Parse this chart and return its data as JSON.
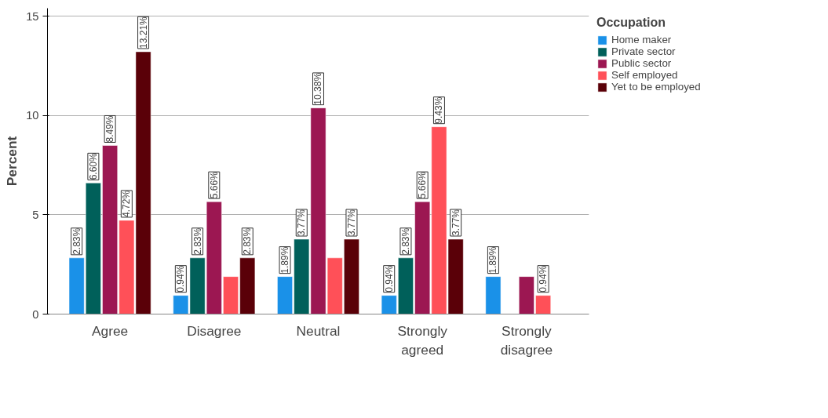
{
  "chart_data": {
    "type": "bar",
    "ylabel": "Percent",
    "legend_title": "Occupation",
    "legend": "right",
    "grid": "y",
    "categories": [
      "Agree",
      "Disagree",
      "Neutral",
      "Strongly\nagreed",
      "Strongly\ndisagree"
    ],
    "ylim": [
      0,
      15.4
    ],
    "yticks": [
      0,
      5,
      10,
      15
    ],
    "series": [
      {
        "name": "Home maker",
        "color": "#1a91e8",
        "values": [
          2.83,
          0.94,
          1.89,
          0.94,
          1.89
        ],
        "value_labels": [
          "2.83%",
          "0.94%",
          "1.89%",
          "0.94%",
          "1.89%"
        ]
      },
      {
        "name": "Private sector",
        "color": "#00605a",
        "values": [
          6.6,
          2.83,
          3.77,
          2.83,
          null
        ],
        "value_labels": [
          "6.60%",
          "2.83%",
          "3.77%",
          "2.83%",
          null
        ]
      },
      {
        "name": "Public sector",
        "color": "#9c1752",
        "values": [
          8.49,
          5.66,
          10.38,
          5.66,
          1.89
        ],
        "value_labels": [
          "8.49%",
          "5.66%",
          "10.38%",
          "5.66%",
          null
        ]
      },
      {
        "name": "Self employed",
        "color": "#ff5058",
        "values": [
          4.72,
          1.89,
          2.83,
          9.43,
          0.94
        ],
        "value_labels": [
          "4.72%",
          null,
          null,
          "9.43%",
          "0.94%"
        ]
      },
      {
        "name": "Yet to be employed",
        "color": "#5a0008",
        "values": [
          13.21,
          2.83,
          3.77,
          3.77,
          null
        ],
        "value_labels": [
          "13.21%",
          "2.83%",
          "3.77%",
          "3.77%",
          null
        ]
      }
    ]
  }
}
